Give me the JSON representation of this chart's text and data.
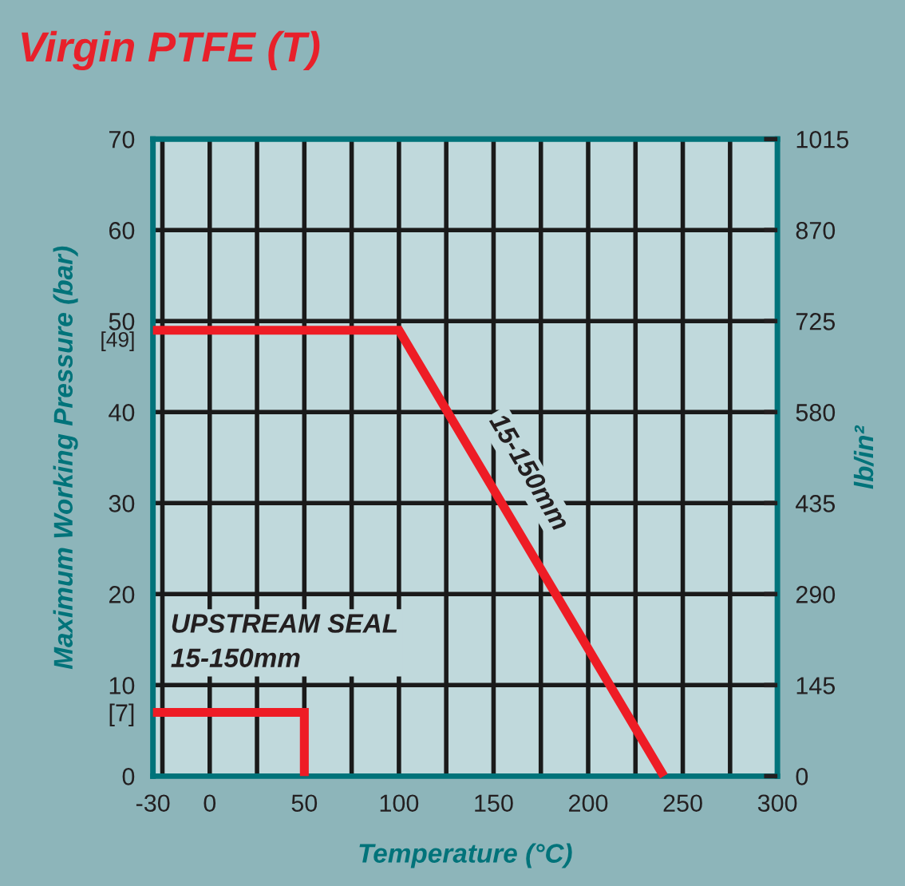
{
  "chart_data": {
    "type": "line",
    "title": "Virgin PTFE (T)",
    "xlabel": "Temperature (°C)",
    "ylabel": "Maximum Working Pressure (bar)",
    "y2label": "lb/in²",
    "series": [
      {
        "name": "15-150mm",
        "color": "#ee1c25",
        "x": [
          -30,
          100,
          240
        ],
        "values": [
          49,
          49,
          0
        ]
      },
      {
        "name": "UPSTREAM SEAL\n15-150mm",
        "color": "#ee1c25",
        "x": [
          -30,
          50,
          50
        ],
        "values": [
          7,
          7,
          0
        ]
      }
    ],
    "xlim": [
      -30,
      300
    ],
    "xticks": [
      -30,
      {
        "value": -25,
        "label": null
      },
      0,
      {
        "value": 25,
        "label": null
      },
      50,
      {
        "value": 75,
        "label": null
      },
      100,
      {
        "value": 125,
        "label": null
      },
      150,
      {
        "value": 175,
        "label": null
      },
      200,
      {
        "value": 225,
        "label": null
      },
      250,
      {
        "value": 275,
        "label": null
      },
      300
    ],
    "ylim": [
      0,
      70
    ],
    "yticks": [
      0,
      {
        "value": 7,
        "label": "[7]"
      },
      10,
      20,
      30,
      40,
      {
        "value": 49,
        "label": "[49]"
      },
      50,
      60,
      70
    ],
    "y2lim": [
      0,
      1015
    ],
    "y2ticks": [
      0,
      145,
      290,
      435,
      580,
      725,
      870,
      1015
    ],
    "grid": true,
    "legend": false,
    "marker": "none",
    "line_style": "solid"
  }
}
